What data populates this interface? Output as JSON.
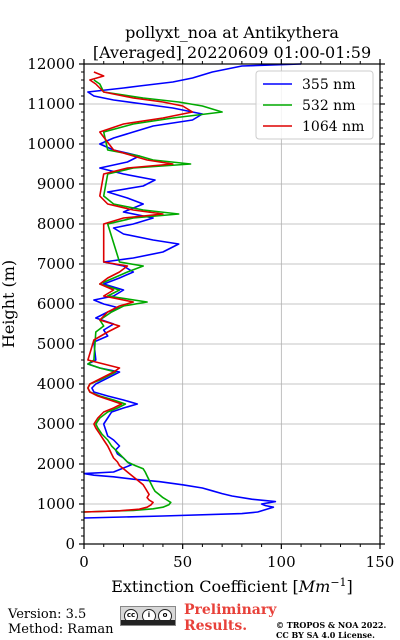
{
  "title_line1": "pollyxt_noa at Antikythera",
  "title_line2": "[Averaged] 20220609 01:00-01:59",
  "footer": {
    "version": "Version: 3.5",
    "method": "Method: Raman",
    "preliminary_line1": "Preliminary",
    "preliminary_line2": "Results.",
    "copyright_line1": "© TROPOS & NOA 2022.",
    "copyright_line2": "CC BY SA 4.0 License.",
    "license_badge_text": "CC BY SA"
  },
  "chart_data": {
    "type": "line",
    "xlabel": "Extinction Coefficient [Mm⁻¹]",
    "ylabel": "Height (m)",
    "xlim": [
      0,
      150
    ],
    "ylim": [
      0,
      12000
    ],
    "xticks": [
      0,
      50,
      100,
      150
    ],
    "yticks": [
      0,
      1000,
      2000,
      3000,
      4000,
      5000,
      6000,
      7000,
      8000,
      9000,
      10000,
      11000,
      12000
    ],
    "grid": true,
    "legend_position": "top-right",
    "series": [
      {
        "name": "355 nm",
        "color": "#0000ff",
        "points": [
          [
            0,
            650
          ],
          [
            40,
            700
          ],
          [
            80,
            760
          ],
          [
            88,
            800
          ],
          [
            92,
            860
          ],
          [
            96,
            920
          ],
          [
            92,
            960
          ],
          [
            90,
            1000
          ],
          [
            97,
            1060
          ],
          [
            85,
            1120
          ],
          [
            75,
            1200
          ],
          [
            70,
            1260
          ],
          [
            65,
            1330
          ],
          [
            60,
            1400
          ],
          [
            50,
            1480
          ],
          [
            38,
            1560
          ],
          [
            25,
            1620
          ],
          [
            15,
            1680
          ],
          [
            5,
            1720
          ],
          [
            0,
            1760
          ],
          [
            15,
            1800
          ],
          [
            20,
            1900
          ],
          [
            24,
            1980
          ],
          [
            22,
            2050
          ],
          [
            20,
            2150
          ],
          [
            17,
            2250
          ],
          [
            16,
            2350
          ],
          [
            18,
            2450
          ],
          [
            15,
            2600
          ],
          [
            12,
            2700
          ],
          [
            11,
            2850
          ],
          [
            10,
            3000
          ],
          [
            12,
            3150
          ],
          [
            14,
            3300
          ],
          [
            20,
            3400
          ],
          [
            27,
            3500
          ],
          [
            20,
            3600
          ],
          [
            12,
            3700
          ],
          [
            5,
            3800
          ],
          [
            4,
            3900
          ],
          [
            6,
            4000
          ],
          [
            10,
            4100
          ],
          [
            14,
            4200
          ],
          [
            18,
            4300
          ],
          [
            8,
            4400
          ],
          [
            2,
            4500
          ],
          [
            6,
            4600
          ],
          [
            5,
            5050
          ],
          [
            12,
            5200
          ],
          [
            10,
            5350
          ],
          [
            15,
            5500
          ],
          [
            6,
            5650
          ],
          [
            12,
            5800
          ],
          [
            18,
            5900
          ],
          [
            10,
            6000
          ],
          [
            5,
            6100
          ],
          [
            15,
            6200
          ],
          [
            20,
            6350
          ],
          [
            10,
            6500
          ],
          [
            18,
            6650
          ],
          [
            25,
            6800
          ],
          [
            20,
            6950
          ],
          [
            10,
            7050
          ],
          [
            25,
            7150
          ],
          [
            40,
            7300
          ],
          [
            48,
            7500
          ],
          [
            35,
            7600
          ],
          [
            20,
            7750
          ],
          [
            15,
            7900
          ],
          [
            25,
            8000
          ],
          [
            35,
            8150
          ],
          [
            20,
            8300
          ],
          [
            30,
            8500
          ],
          [
            22,
            8650
          ],
          [
            12,
            8800
          ],
          [
            30,
            8950
          ],
          [
            36,
            9100
          ],
          [
            20,
            9250
          ],
          [
            8,
            9400
          ],
          [
            22,
            9550
          ],
          [
            28,
            9700
          ],
          [
            15,
            9850
          ],
          [
            8,
            10000
          ],
          [
            15,
            10150
          ],
          [
            25,
            10300
          ],
          [
            35,
            10450
          ],
          [
            55,
            10600
          ],
          [
            60,
            10750
          ],
          [
            45,
            10900
          ],
          [
            30,
            11000
          ],
          [
            15,
            11100
          ],
          [
            5,
            11200
          ],
          [
            2,
            11300
          ],
          [
            20,
            11400
          ],
          [
            28,
            11450
          ],
          [
            45,
            11550
          ],
          [
            55,
            11650
          ],
          [
            65,
            11800
          ],
          [
            80,
            11950
          ],
          [
            110,
            12000
          ]
        ]
      },
      {
        "name": "532 nm",
        "color": "#00aa00",
        "points": [
          [
            0,
            800
          ],
          [
            25,
            840
          ],
          [
            35,
            880
          ],
          [
            40,
            920
          ],
          [
            43,
            980
          ],
          [
            44,
            1040
          ],
          [
            42,
            1100
          ],
          [
            40,
            1160
          ],
          [
            38,
            1240
          ],
          [
            36,
            1320
          ],
          [
            35,
            1400
          ],
          [
            34,
            1500
          ],
          [
            33,
            1600
          ],
          [
            32,
            1700
          ],
          [
            31,
            1800
          ],
          [
            30,
            1880
          ],
          [
            26,
            1960
          ],
          [
            22,
            2050
          ],
          [
            20,
            2150
          ],
          [
            18,
            2250
          ],
          [
            16,
            2350
          ],
          [
            14,
            2450
          ],
          [
            12,
            2600
          ],
          [
            9,
            2750
          ],
          [
            7,
            2900
          ],
          [
            6,
            3000
          ],
          [
            8,
            3150
          ],
          [
            12,
            3300
          ],
          [
            17,
            3400
          ],
          [
            21,
            3500
          ],
          [
            15,
            3600
          ],
          [
            8,
            3700
          ],
          [
            3,
            3800
          ],
          [
            2,
            3900
          ],
          [
            3,
            4000
          ],
          [
            8,
            4100
          ],
          [
            12,
            4200
          ],
          [
            16,
            4300
          ],
          [
            8,
            4400
          ],
          [
            2,
            4500
          ],
          [
            5,
            4600
          ],
          [
            6,
            5300
          ],
          [
            10,
            5450
          ],
          [
            8,
            5600
          ],
          [
            14,
            5800
          ],
          [
            20,
            5950
          ],
          [
            32,
            6050
          ],
          [
            12,
            6200
          ],
          [
            18,
            6350
          ],
          [
            8,
            6500
          ],
          [
            15,
            6650
          ],
          [
            22,
            6800
          ],
          [
            30,
            6950
          ],
          [
            18,
            7050
          ],
          [
            12,
            8000
          ],
          [
            25,
            8150
          ],
          [
            48,
            8250
          ],
          [
            30,
            8350
          ],
          [
            15,
            8500
          ],
          [
            10,
            8700
          ],
          [
            12,
            9250
          ],
          [
            25,
            9400
          ],
          [
            54,
            9500
          ],
          [
            35,
            9600
          ],
          [
            28,
            9700
          ],
          [
            12,
            9850
          ],
          [
            10,
            10300
          ],
          [
            25,
            10500
          ],
          [
            45,
            10650
          ],
          [
            70,
            10800
          ],
          [
            60,
            10950
          ],
          [
            48,
            11050
          ],
          [
            30,
            11150
          ],
          [
            10,
            11300
          ],
          [
            8,
            11500
          ],
          [
            5,
            11600
          ]
        ]
      },
      {
        "name": "1064 nm",
        "color": "#dd0000",
        "points": [
          [
            0,
            800
          ],
          [
            18,
            830
          ],
          [
            28,
            870
          ],
          [
            32,
            920
          ],
          [
            34,
            980
          ],
          [
            35,
            1040
          ],
          [
            33,
            1100
          ],
          [
            32,
            1160
          ],
          [
            33,
            1240
          ],
          [
            32,
            1320
          ],
          [
            31,
            1400
          ],
          [
            30,
            1480
          ],
          [
            28,
            1560
          ],
          [
            26,
            1640
          ],
          [
            24,
            1720
          ],
          [
            22,
            1800
          ],
          [
            20,
            1880
          ],
          [
            18,
            1960
          ],
          [
            17,
            2050
          ],
          [
            15,
            2150
          ],
          [
            14,
            2250
          ],
          [
            13,
            2350
          ],
          [
            12,
            2450
          ],
          [
            10,
            2600
          ],
          [
            8,
            2750
          ],
          [
            6,
            2900
          ],
          [
            5,
            3000
          ],
          [
            7,
            3150
          ],
          [
            10,
            3300
          ],
          [
            15,
            3400
          ],
          [
            19,
            3500
          ],
          [
            13,
            3600
          ],
          [
            7,
            3700
          ],
          [
            3,
            3800
          ],
          [
            2,
            3900
          ],
          [
            3,
            4000
          ],
          [
            7,
            4100
          ],
          [
            11,
            4200
          ],
          [
            15,
            4300
          ],
          [
            18,
            4400
          ],
          [
            10,
            4500
          ],
          [
            2,
            4600
          ],
          [
            5,
            5100
          ],
          [
            12,
            5300
          ],
          [
            18,
            5450
          ],
          [
            8,
            5600
          ],
          [
            12,
            5800
          ],
          [
            18,
            5950
          ],
          [
            25,
            6050
          ],
          [
            10,
            6200
          ],
          [
            15,
            6350
          ],
          [
            8,
            6500
          ],
          [
            12,
            6650
          ],
          [
            18,
            6800
          ],
          [
            22,
            6950
          ],
          [
            10,
            7050
          ],
          [
            10,
            8000
          ],
          [
            20,
            8150
          ],
          [
            40,
            8250
          ],
          [
            25,
            8350
          ],
          [
            12,
            8500
          ],
          [
            8,
            8700
          ],
          [
            10,
            9250
          ],
          [
            22,
            9400
          ],
          [
            45,
            9500
          ],
          [
            32,
            9600
          ],
          [
            25,
            9700
          ],
          [
            15,
            9850
          ],
          [
            8,
            10300
          ],
          [
            20,
            10500
          ],
          [
            40,
            10650
          ],
          [
            55,
            10800
          ],
          [
            50,
            10950
          ],
          [
            40,
            11050
          ],
          [
            25,
            11150
          ],
          [
            10,
            11300
          ],
          [
            6,
            11500
          ],
          [
            3,
            11600
          ],
          [
            10,
            11700
          ],
          [
            5,
            11800
          ]
        ]
      }
    ]
  }
}
